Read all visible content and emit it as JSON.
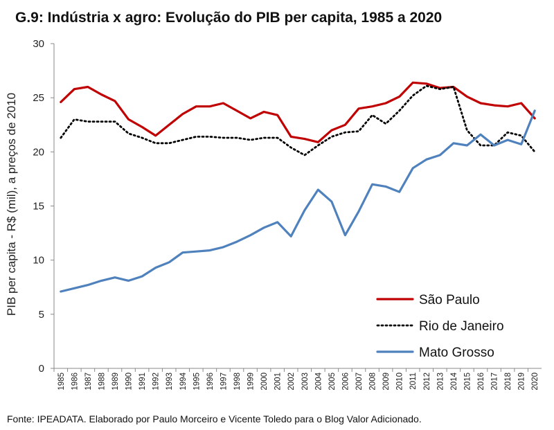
{
  "title": "G.9: Indústria x agro: Evolução do PIB per capita, 1985 a 2020",
  "source": "Fonte: IPEADATA. Elaborado por Paulo Morceiro e Vicente Toledo para o Blog Valor Adicionado.",
  "chart_data": {
    "type": "line",
    "ylabel": "PIB per capita - R$ (mil), a preços de 2010",
    "xlabel": "",
    "ylim": [
      0,
      30
    ],
    "yticks": [
      "0",
      "5",
      "10",
      "15",
      "20",
      "25",
      "30"
    ],
    "categories": [
      "1985",
      "1986",
      "1987",
      "1988",
      "1989",
      "1990",
      "1991",
      "1992",
      "1993",
      "1994",
      "1995",
      "1996",
      "1997",
      "1998",
      "1999",
      "2000",
      "2001",
      "2002",
      "2003",
      "2004",
      "2005",
      "2006",
      "2007",
      "2008",
      "2009",
      "2010",
      "2011",
      "2012",
      "2013",
      "2014",
      "2015",
      "2016",
      "2017",
      "2018",
      "2019",
      "2020"
    ],
    "grid": false,
    "legend_position": "bottom-right",
    "series": [
      {
        "name": "São Paulo",
        "color": "#c00000",
        "style": "solid",
        "values": [
          24.6,
          25.8,
          26.0,
          25.3,
          24.7,
          23.0,
          22.3,
          21.5,
          22.5,
          23.5,
          24.2,
          24.2,
          24.5,
          23.8,
          23.1,
          23.7,
          23.4,
          21.4,
          21.2,
          20.9,
          22.0,
          22.5,
          24.0,
          24.2,
          24.5,
          25.1,
          26.4,
          26.3,
          25.9,
          26.0,
          25.1,
          24.5,
          24.3,
          24.2,
          24.5,
          23.1
        ]
      },
      {
        "name": "Rio de Janeiro",
        "color": "#000000",
        "style": "dotted",
        "values": [
          21.3,
          23.0,
          22.8,
          22.8,
          22.8,
          21.7,
          21.3,
          20.8,
          20.8,
          21.1,
          21.4,
          21.4,
          21.3,
          21.3,
          21.1,
          21.3,
          21.3,
          20.4,
          19.7,
          20.6,
          21.4,
          21.8,
          21.9,
          23.4,
          22.6,
          23.8,
          25.2,
          26.1,
          25.8,
          26.0,
          22.0,
          20.6,
          20.6,
          21.8,
          21.5,
          20.0
        ]
      },
      {
        "name": "Mato Grosso",
        "color": "#4f81bd",
        "style": "solid",
        "values": [
          7.1,
          7.4,
          7.7,
          8.1,
          8.4,
          8.1,
          8.5,
          9.3,
          9.8,
          10.7,
          10.8,
          10.9,
          11.2,
          11.7,
          12.3,
          13.0,
          13.5,
          12.2,
          14.6,
          16.5,
          15.4,
          12.3,
          14.5,
          17.0,
          16.8,
          16.3,
          18.5,
          19.3,
          19.7,
          20.8,
          20.6,
          21.6,
          20.6,
          21.1,
          20.7,
          23.8
        ]
      }
    ]
  }
}
